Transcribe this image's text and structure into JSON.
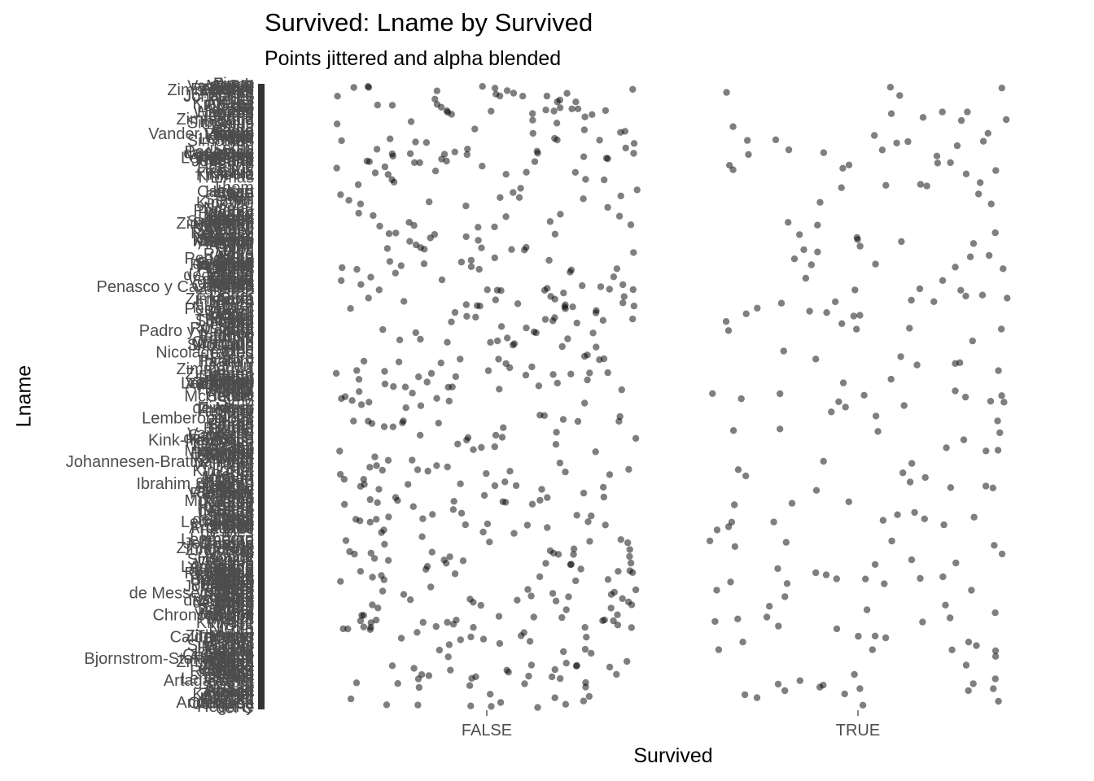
{
  "title": "Survived: Lname by Survived",
  "subtitle": "Points jittered and alpha blended",
  "chart_data": {
    "type": "scatter",
    "title": "Survived: Lname by Survived",
    "subtitle": "Points jittered and alpha blended",
    "xlabel": "Survived",
    "ylabel": "Lname",
    "categories": [
      "FALSE",
      "TRUE"
    ],
    "counts": {
      "FALSE": 500,
      "TRUE": 200
    },
    "ylim": [
      0,
      1
    ],
    "grid": false,
    "legend": "none",
    "point_color": "#000000",
    "point_alpha": 0.5,
    "y_tick_labels_legible": [
      "Zimmerman",
      "Williams",
      "Vander Planke",
      "Van Impe",
      "Thomas",
      "Staheli",
      "Simonius",
      "Sage",
      "Rosblom",
      "Penasco y Castellana",
      "Pedersen",
      "Padro y Manent",
      "Nicola-Yarred",
      "Moran",
      "McCarthy",
      "Lemberopolous",
      "Kink-Heilmann",
      "Johannesen-Bratthammer",
      "Ibrahim Shawah",
      "Hegarty",
      "Frolicher",
      "Doharr",
      "del Carlo",
      "de Messemaeker",
      "Chronopoulos",
      "Calderhead",
      "Bjornstrom-Steffansson",
      "Artagaveytia",
      "Andersson"
    ]
  }
}
